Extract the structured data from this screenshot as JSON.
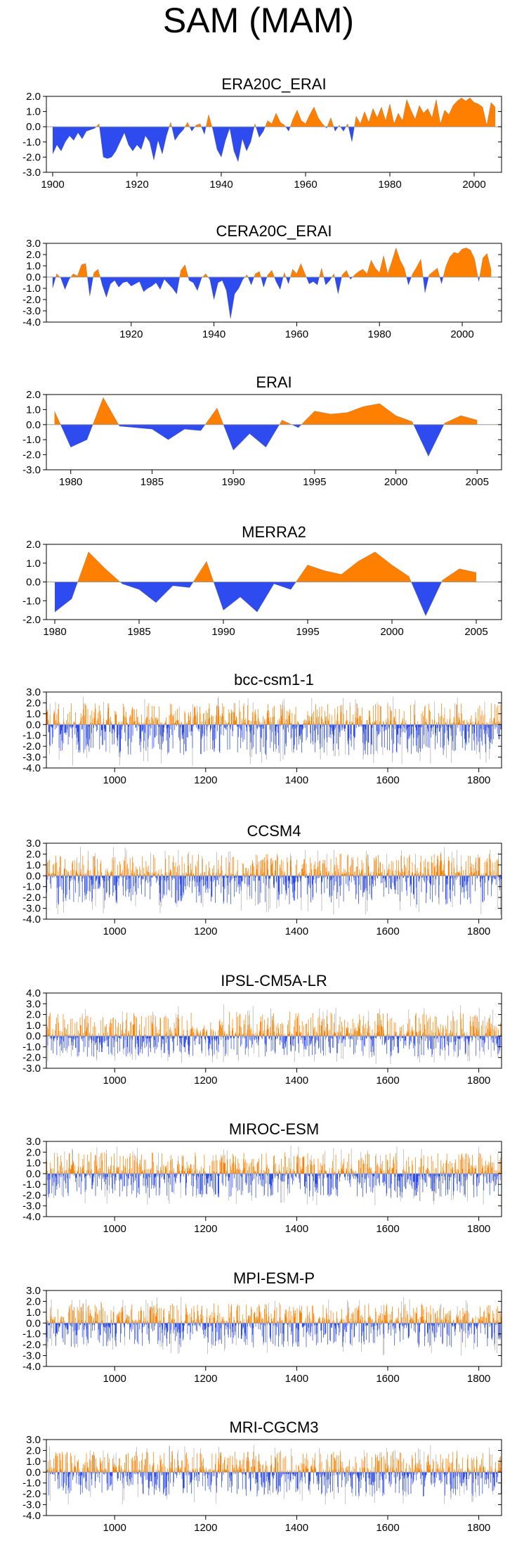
{
  "figure": {
    "title": "SAM (MAM)"
  },
  "colors": {
    "positive": "#ff8000",
    "negative": "#2e4bf0",
    "axis": "#000000",
    "zero_line": "#999999"
  },
  "chart_data": [
    {
      "type": "area",
      "title": "ERA20C_ERAI",
      "xlim": [
        1898.5,
        2006.5
      ],
      "ylim": [
        -3.0,
        2.0
      ],
      "yticks": [
        2.0,
        1.0,
        0.0,
        -1.0,
        -2.0,
        -3.0
      ],
      "ytick_labels": [
        "2.0",
        "1.0",
        "0.0",
        "-1.0",
        "-2.0",
        "-3.0"
      ],
      "xticks": [
        1900,
        1920,
        1940,
        1960,
        1980,
        2000
      ],
      "x_start": 1900,
      "values": [
        -1.8,
        -1.2,
        -1.6,
        -1.0,
        -0.6,
        -0.9,
        -0.4,
        -0.8,
        -0.3,
        -0.2,
        -0.1,
        0.2,
        -2.0,
        -2.1,
        -2.0,
        -1.6,
        -1.0,
        -0.4,
        -1.2,
        -1.6,
        -1.2,
        -1.5,
        -0.6,
        -1.0,
        -2.2,
        -0.9,
        -1.8,
        -0.6,
        0.3,
        -0.9,
        -0.5,
        -0.2,
        0.3,
        -0.3,
        0.1,
        0.2,
        -0.5,
        0.8,
        -0.2,
        -1.5,
        -2.0,
        -0.9,
        -0.1,
        -1.6,
        -2.3,
        -0.8,
        -1.6,
        -1.0,
        0.2,
        -0.7,
        -0.3,
        0.4,
        0.2,
        0.9,
        0.3,
        0.1,
        -0.3,
        0.5,
        1.1,
        0.4,
        0.2,
        0.8,
        1.3,
        0.6,
        0.2,
        -0.1,
        0.6,
        -0.3,
        0.1,
        -0.3,
        0.2,
        -1.0,
        0.7,
        0.2,
        1.0,
        0.3,
        1.2,
        0.6,
        1.3,
        0.4,
        1.5,
        0.2,
        0.9,
        0.4,
        1.8,
        1.1,
        0.5,
        1.4,
        0.9,
        1.2,
        0.6,
        1.8,
        0.2,
        1.1,
        0.8,
        1.4,
        1.7,
        1.9,
        1.7,
        1.9,
        1.6,
        1.5,
        1.3,
        0.1,
        1.6,
        1.3
      ]
    },
    {
      "type": "area",
      "title": "CERA20C_ERAI",
      "xlim": [
        1899.5,
        2009.5
      ],
      "ylim": [
        -4.0,
        3.0
      ],
      "yticks": [
        3.0,
        2.0,
        1.0,
        0.0,
        -1.0,
        -2.0,
        -3.0,
        -4.0
      ],
      "ytick_labels": [
        "3.0",
        "2.0",
        "1.0",
        "0.0",
        "-1.0",
        "-2.0",
        "-3.0",
        "-4.0"
      ],
      "xticks": [
        1920,
        1940,
        1960,
        1980,
        2000
      ],
      "x_start": 1901,
      "values": [
        -1.0,
        0.3,
        -0.1,
        -1.1,
        -0.2,
        0.3,
        0.1,
        1.1,
        1.2,
        -1.7,
        0.4,
        0.7,
        -0.7,
        -1.8,
        -0.6,
        -0.3,
        -0.9,
        -0.5,
        -0.4,
        -0.8,
        -0.6,
        -0.4,
        -1.3,
        -1.0,
        -0.8,
        -0.5,
        -1.1,
        -0.2,
        -0.6,
        -1.0,
        -1.5,
        0.6,
        1.1,
        -0.3,
        -0.5,
        -1.2,
        -0.1,
        0.3,
        -0.2,
        -2.0,
        -0.5,
        -0.3,
        -1.2,
        -3.7,
        -1.5,
        -1.0,
        -0.2,
        0.2,
        -0.7,
        0.3,
        0.5,
        -0.9,
        0.2,
        0.6,
        -0.4,
        -1.1,
        0.4,
        -0.6,
        0.7,
        0.3,
        1.2,
        0.3,
        -0.6,
        -0.4,
        -0.7,
        0.8,
        -0.7,
        -0.3,
        0.3,
        -1.5,
        0.2,
        0.6,
        -0.2,
        0.2,
        0.5,
        0.7,
        0.3,
        1.5,
        0.8,
        0.4,
        1.9,
        0.3,
        1.4,
        2.6,
        1.5,
        0.8,
        -0.7,
        0.3,
        0.9,
        1.6,
        -1.4,
        0.2,
        0.5,
        0.8,
        -0.6,
        0.9,
        1.8,
        2.2,
        2.1,
        2.5,
        2.6,
        2.4,
        1.6,
        -0.4,
        1.7,
        2.1,
        0.6
      ]
    },
    {
      "type": "area",
      "title": "ERAI",
      "xlim": [
        1978.5,
        2006.5
      ],
      "ylim": [
        -3.0,
        2.0
      ],
      "yticks": [
        2.0,
        1.0,
        0.0,
        -1.0,
        -2.0,
        -3.0
      ],
      "ytick_labels": [
        "2.0",
        "1.0",
        "0.0",
        "-1.0",
        "-2.0",
        "-3.0"
      ],
      "xticks": [
        1980,
        1985,
        1990,
        1995,
        2000,
        2005
      ],
      "x_start": 1979,
      "values": [
        0.9,
        -1.5,
        -1.0,
        1.8,
        -0.1,
        -0.2,
        -0.3,
        -1.0,
        -0.3,
        -0.4,
        1.1,
        -1.7,
        -0.6,
        -1.5,
        0.3,
        -0.2,
        0.9,
        0.7,
        0.8,
        1.2,
        1.4,
        0.6,
        0.2,
        -2.1,
        0.1,
        0.6,
        0.3
      ]
    },
    {
      "type": "area",
      "title": "MERRA2",
      "xlim": [
        1979.5,
        2006.5
      ],
      "ylim": [
        -2.0,
        2.0
      ],
      "yticks": [
        2.0,
        1.0,
        0.0,
        -1.0,
        -2.0
      ],
      "ytick_labels": [
        "2.0",
        "1.0",
        "0.0",
        "-1.0",
        "-2.0"
      ],
      "xticks": [
        1980,
        1985,
        1990,
        1995,
        2000,
        2005
      ],
      "x_start": 1980,
      "values": [
        -1.6,
        -0.9,
        1.6,
        0.7,
        -0.1,
        -0.4,
        -1.1,
        -0.2,
        -0.3,
        1.1,
        -1.5,
        -0.8,
        -1.6,
        -0.1,
        -0.4,
        0.9,
        0.6,
        0.4,
        1.1,
        1.6,
        0.9,
        0.3,
        -1.8,
        0.1,
        0.7,
        0.5
      ]
    },
    {
      "type": "bar",
      "title": "bcc-csm1-1",
      "xlim": [
        850,
        1850
      ],
      "ylim": [
        -4.0,
        3.0
      ],
      "yticks": [
        3.0,
        2.0,
        1.0,
        0.0,
        -1.0,
        -2.0,
        -3.0,
        -4.0
      ],
      "ytick_labels": [
        "3.0",
        "2.0",
        "1.0",
        "0.0",
        "-1.0",
        "-2.0",
        "-3.0",
        "-4.0"
      ],
      "xticks": [
        1000,
        1200,
        1400,
        1600,
        1800
      ],
      "seed": 11,
      "amplitude": [
        2.6,
        3.8
      ],
      "min_year": 850,
      "max_year": 1850
    },
    {
      "type": "bar",
      "title": "CCSM4",
      "xlim": [
        850,
        1850
      ],
      "ylim": [
        -4.0,
        3.0
      ],
      "yticks": [
        3.0,
        2.0,
        1.0,
        0.0,
        -1.0,
        -2.0,
        -3.0,
        -4.0
      ],
      "ytick_labels": [
        "3.0",
        "2.0",
        "1.0",
        "0.0",
        "-1.0",
        "-2.0",
        "-3.0",
        "-4.0"
      ],
      "xticks": [
        1000,
        1200,
        1400,
        1600,
        1800
      ],
      "seed": 23,
      "amplitude": [
        2.7,
        3.6
      ],
      "min_year": 850,
      "max_year": 1850
    },
    {
      "type": "bar",
      "title": "IPSL-CM5A-LR",
      "xlim": [
        850,
        1850
      ],
      "ylim": [
        -3.0,
        4.0
      ],
      "yticks": [
        4.0,
        3.0,
        2.0,
        1.0,
        0.0,
        -1.0,
        -2.0,
        -3.0
      ],
      "ytick_labels": [
        "4.0",
        "3.0",
        "2.0",
        "1.0",
        "0.0",
        "-1.0",
        "-2.0",
        "-3.0"
      ],
      "xticks": [
        1000,
        1200,
        1400,
        1600,
        1800
      ],
      "seed": 37,
      "amplitude": [
        3.0,
        2.6
      ],
      "min_year": 850,
      "max_year": 1850
    },
    {
      "type": "bar",
      "title": "MIROC-ESM",
      "xlim": [
        850,
        1850
      ],
      "ylim": [
        -4.0,
        3.0
      ],
      "yticks": [
        3.0,
        2.0,
        1.0,
        0.0,
        -1.0,
        -2.0,
        -3.0,
        -4.0
      ],
      "ytick_labels": [
        "3.0",
        "2.0",
        "1.0",
        "0.0",
        "-1.0",
        "-2.0",
        "-3.0",
        "-4.0"
      ],
      "xticks": [
        1000,
        1200,
        1400,
        1600,
        1800
      ],
      "seed": 41,
      "amplitude": [
        2.6,
        3.0
      ],
      "min_year": 850,
      "max_year": 1850
    },
    {
      "type": "bar",
      "title": "MPI-ESM-P",
      "xlim": [
        850,
        1850
      ],
      "ylim": [
        -4.0,
        3.0
      ],
      "yticks": [
        3.0,
        2.0,
        1.0,
        0.0,
        -1.0,
        -2.0,
        -3.0,
        -4.0
      ],
      "ytick_labels": [
        "3.0",
        "2.0",
        "1.0",
        "0.0",
        "-1.0",
        "-2.0",
        "-3.0",
        "-4.0"
      ],
      "xticks": [
        1000,
        1200,
        1400,
        1600,
        1800
      ],
      "seed": 53,
      "amplitude": [
        2.4,
        3.0
      ],
      "min_year": 850,
      "max_year": 1850
    },
    {
      "type": "bar",
      "title": "MRI-CGCM3",
      "xlim": [
        850,
        1850
      ],
      "ylim": [
        -4.0,
        3.0
      ],
      "yticks": [
        3.0,
        2.0,
        1.0,
        0.0,
        -1.0,
        -2.0,
        -3.0,
        -4.0
      ],
      "ytick_labels": [
        "3.0",
        "2.0",
        "1.0",
        "0.0",
        "-1.0",
        "-2.0",
        "-3.0",
        "-4.0"
      ],
      "xticks": [
        1000,
        1200,
        1400,
        1600,
        1800
      ],
      "seed": 67,
      "amplitude": [
        2.5,
        3.0
      ],
      "min_year": 850,
      "max_year": 1850
    }
  ]
}
